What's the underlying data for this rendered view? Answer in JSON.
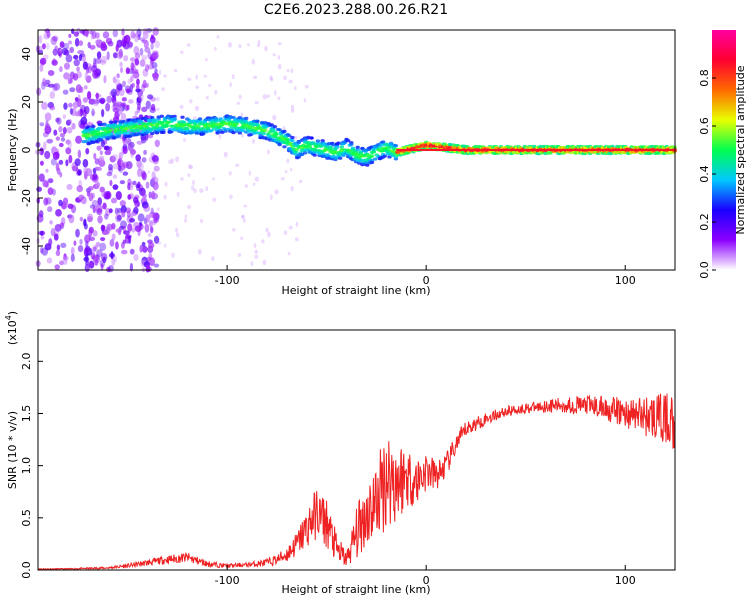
{
  "chart_data": [
    {
      "type": "heatmap",
      "title": "C2E6.2023.288.00.26.R21",
      "xlabel": "Height of straight line (km)",
      "ylabel": "Frequency (Hz)",
      "xlim": [
        -195,
        125
      ],
      "ylim": [
        -50,
        50
      ],
      "x_ticks": [
        -100,
        0,
        100
      ],
      "y_ticks": [
        -40,
        -20,
        0,
        20,
        40
      ],
      "colorbar": {
        "label": "Normalized spectral amplitude",
        "range": [
          0,
          1
        ],
        "ticks": [
          0.0,
          0.2,
          0.4,
          0.6,
          0.8
        ],
        "tick_labels": [
          "0.0",
          "0.2",
          "0.4",
          "0.6",
          "0.8"
        ],
        "colormap": [
          "#ffffff",
          "#8c00ff",
          "#1a00ff",
          "#00c8ff",
          "#00ff50",
          "#e8ff00",
          "#ff6a00",
          "#ff0030",
          "#ff00a0"
        ]
      },
      "ridge": {
        "x": [
          -170,
          -160,
          -150,
          -140,
          -130,
          -120,
          -110,
          -100,
          -90,
          -80,
          -70,
          -65,
          -60,
          -55,
          -50,
          -45,
          -40,
          -35,
          -30,
          -25,
          -20,
          -15,
          -10,
          -5,
          0,
          10,
          20,
          40,
          60,
          80,
          100,
          125
        ],
        "y": [
          6,
          8,
          9,
          10,
          11,
          10,
          10,
          11,
          10,
          8,
          4,
          0,
          2,
          1,
          0,
          -1,
          1,
          -2,
          -3,
          -1,
          1,
          -1,
          0,
          1,
          2,
          1,
          0,
          0,
          0,
          0,
          0,
          0
        ]
      },
      "grid": false
    },
    {
      "type": "line",
      "xlabel": "Height of straight line (km)",
      "ylabel": "SNR (10 * v/v)",
      "y_multiplier_label": "(x10^4)",
      "xlim": [
        -195,
        125
      ],
      "ylim": [
        0,
        2.3
      ],
      "x_ticks": [
        -100,
        0,
        100
      ],
      "y_ticks": [
        0.0,
        0.5,
        1.0,
        1.5,
        2.0
      ],
      "series": [
        {
          "color": "#ee2222",
          "x": [
            -195,
            -180,
            -160,
            -150,
            -140,
            -130,
            -120,
            -110,
            -100,
            -90,
            -80,
            -75,
            -70,
            -65,
            -60,
            -55,
            -50,
            -45,
            -40,
            -35,
            -30,
            -25,
            -20,
            -15,
            -10,
            -5,
            0,
            5,
            10,
            15,
            20,
            30,
            40,
            50,
            60,
            70,
            80,
            90,
            100,
            110,
            120,
            125
          ],
          "values": [
            0.01,
            0.01,
            0.02,
            0.04,
            0.07,
            0.1,
            0.12,
            0.06,
            0.04,
            0.05,
            0.07,
            0.1,
            0.15,
            0.25,
            0.4,
            0.55,
            0.45,
            0.2,
            0.1,
            0.35,
            0.55,
            0.65,
            0.9,
            0.85,
            0.9,
            0.85,
            0.95,
            0.9,
            1.0,
            1.2,
            1.35,
            1.45,
            1.52,
            1.55,
            1.57,
            1.58,
            1.58,
            1.55,
            1.5,
            1.48,
            1.45,
            1.42
          ],
          "noise": [
            0.005,
            0.005,
            0.01,
            0.02,
            0.03,
            0.04,
            0.05,
            0.03,
            0.02,
            0.02,
            0.04,
            0.05,
            0.08,
            0.12,
            0.2,
            0.25,
            0.25,
            0.15,
            0.08,
            0.25,
            0.35,
            0.4,
            0.5,
            0.45,
            0.3,
            0.25,
            0.2,
            0.15,
            0.12,
            0.1,
            0.08,
            0.06,
            0.05,
            0.05,
            0.06,
            0.08,
            0.1,
            0.12,
            0.15,
            0.2,
            0.25,
            0.3
          ]
        }
      ],
      "grid": false
    }
  ]
}
